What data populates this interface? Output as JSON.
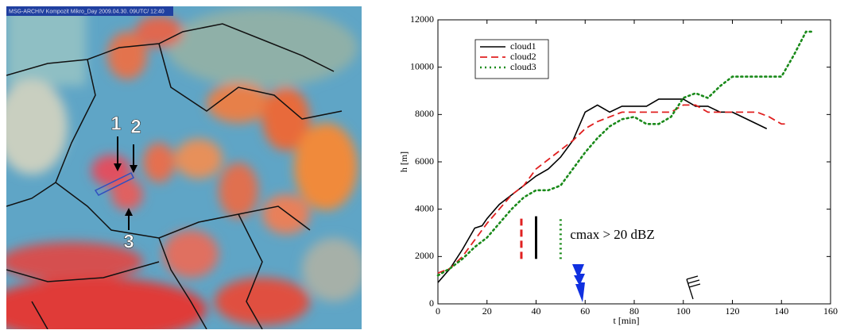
{
  "satellite_image": {
    "header": "MSG-ARCHIV Kompozit Mikro_Day 2009.04.30. 09UTC/ 12:40",
    "markers": [
      "1",
      "2",
      "3"
    ]
  },
  "chart_data": {
    "type": "line",
    "xlabel": "t [min]",
    "ylabel": "h [m]",
    "xlim": [
      0,
      160
    ],
    "xticks": [
      0,
      20,
      40,
      60,
      80,
      100,
      120,
      140,
      160
    ],
    "ylim": [
      0,
      12000
    ],
    "yticks": [
      0,
      2000,
      4000,
      6000,
      8000,
      10000,
      12000
    ],
    "grid": false,
    "legend": "upper left",
    "annotation": "cmax > 20 dBZ",
    "cmax_bars": [
      {
        "x": 34,
        "y": [
          1900,
          3600
        ],
        "color": "#e02020",
        "dash": "dashed"
      },
      {
        "x": 40,
        "y": [
          1900,
          3700
        ],
        "color": "#000000",
        "dash": "solid"
      },
      {
        "x": 50,
        "y": [
          1900,
          3700
        ],
        "color": "#1a8a1a",
        "dash": "dotted"
      }
    ],
    "series": [
      {
        "name": "cloud1",
        "color": "#000000",
        "dash": "solid",
        "x": [
          0,
          5,
          10,
          15,
          18,
          20,
          25,
          30,
          35,
          40,
          45,
          50,
          55,
          60,
          65,
          70,
          75,
          85,
          90,
          100,
          105,
          110,
          115,
          120,
          130,
          134
        ],
        "values": [
          900,
          1500,
          2300,
          3200,
          3300,
          3600,
          4200,
          4600,
          5000,
          5400,
          5700,
          6200,
          6900,
          8100,
          8400,
          8100,
          8350,
          8350,
          8650,
          8650,
          8350,
          8350,
          8100,
          8100,
          7600,
          7400
        ]
      },
      {
        "name": "cloud2",
        "color": "#e02020",
        "dash": "dashed",
        "x": [
          0,
          5,
          10,
          15,
          20,
          25,
          30,
          35,
          40,
          45,
          50,
          55,
          60,
          65,
          70,
          75,
          90,
          95,
          100,
          105,
          110,
          125,
          130,
          135,
          140,
          143
        ],
        "values": [
          1300,
          1500,
          2000,
          2700,
          3400,
          4000,
          4600,
          5000,
          5700,
          6100,
          6500,
          6900,
          7400,
          7700,
          7900,
          8100,
          8100,
          8100,
          8400,
          8400,
          8100,
          8100,
          8100,
          7900,
          7600,
          7600
        ]
      },
      {
        "name": "cloud3",
        "color": "#1a8a1a",
        "dash": "dotted",
        "x": [
          0,
          5,
          10,
          15,
          20,
          25,
          30,
          35,
          40,
          45,
          50,
          55,
          60,
          65,
          70,
          75,
          80,
          85,
          90,
          95,
          100,
          105,
          110,
          115,
          120,
          130,
          140,
          145,
          150,
          153
        ],
        "values": [
          1200,
          1500,
          1900,
          2400,
          2800,
          3400,
          4000,
          4500,
          4800,
          4800,
          5000,
          5700,
          6400,
          7000,
          7500,
          7800,
          7900,
          7600,
          7600,
          7900,
          8700,
          8900,
          8700,
          9200,
          9600,
          9600,
          9600,
          10500,
          11500,
          11500
        ]
      }
    ]
  }
}
